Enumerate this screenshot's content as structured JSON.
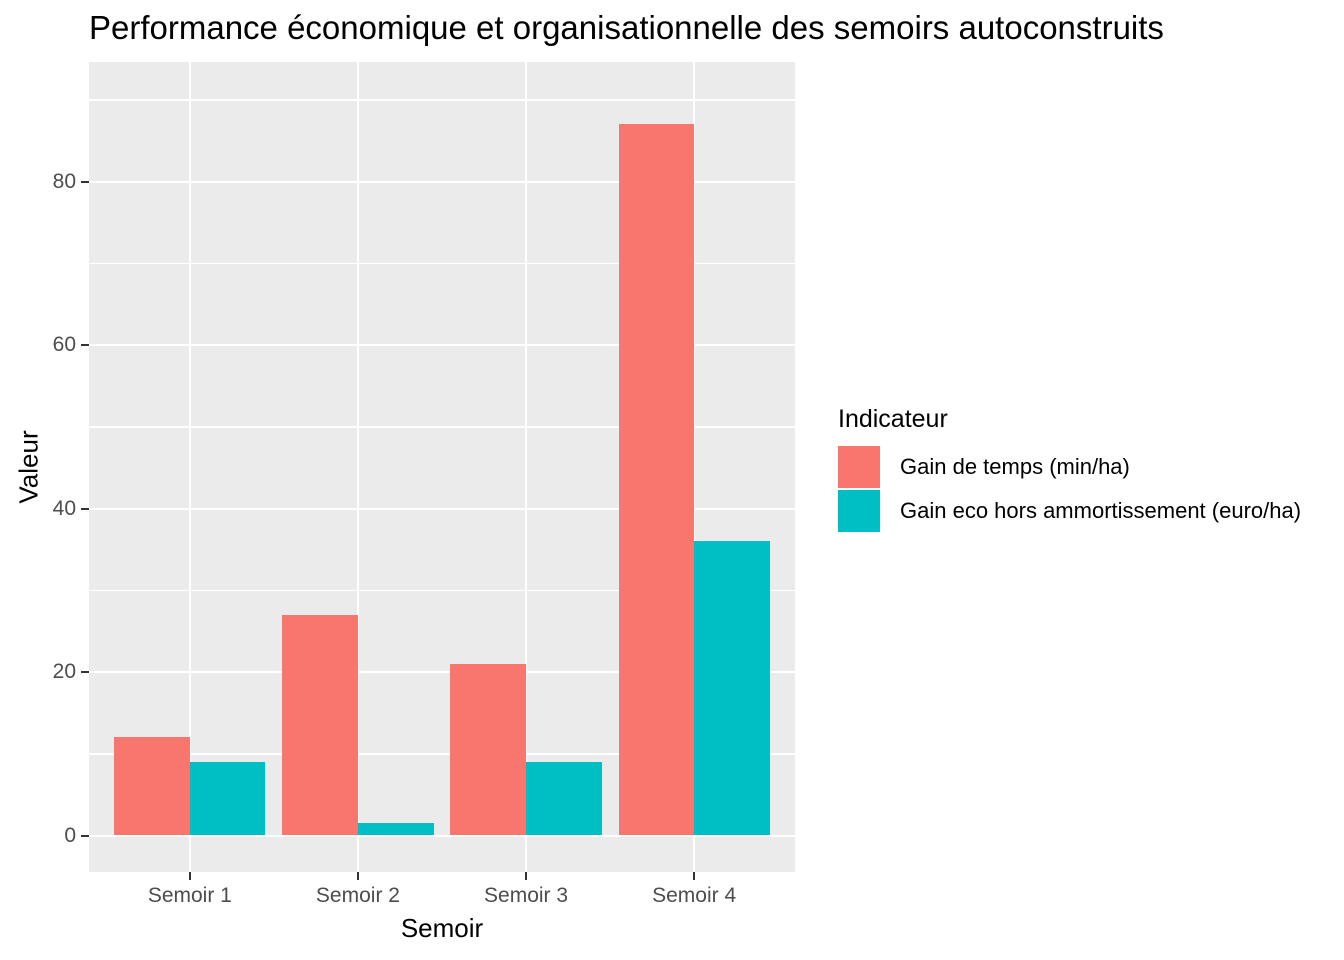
{
  "chart_data": {
    "type": "bar",
    "grouped": true,
    "title": "Performance économique et organisationnelle des semoirs autoconstruits",
    "xlabel": "Semoir",
    "ylabel": "Valeur",
    "categories": [
      "Semoir 1",
      "Semoir 2",
      "Semoir 3",
      "Semoir 4"
    ],
    "series": [
      {
        "name": "Gain de temps (min/ha)",
        "color": "#F8766D",
        "values": [
          12,
          27,
          21,
          87
        ]
      },
      {
        "name": "Gain eco hors ammortissement (euro/ha)",
        "color": "#00BFC4",
        "values": [
          9,
          1.5,
          9,
          36
        ]
      }
    ],
    "legend_title": "Indicateur",
    "legend_position": "right",
    "y_major_ticks": [
      0,
      20,
      40,
      60,
      80
    ],
    "y_minor_ticks": [
      10,
      30,
      50,
      70,
      90
    ],
    "ylim": [
      -4.5,
      94.6
    ],
    "grid": true,
    "panel_bg": "#EBEBEB",
    "grid_color": "#FFFFFF",
    "tick_mark_color": "#333333",
    "tick_label_color": "#4D4D4D"
  }
}
